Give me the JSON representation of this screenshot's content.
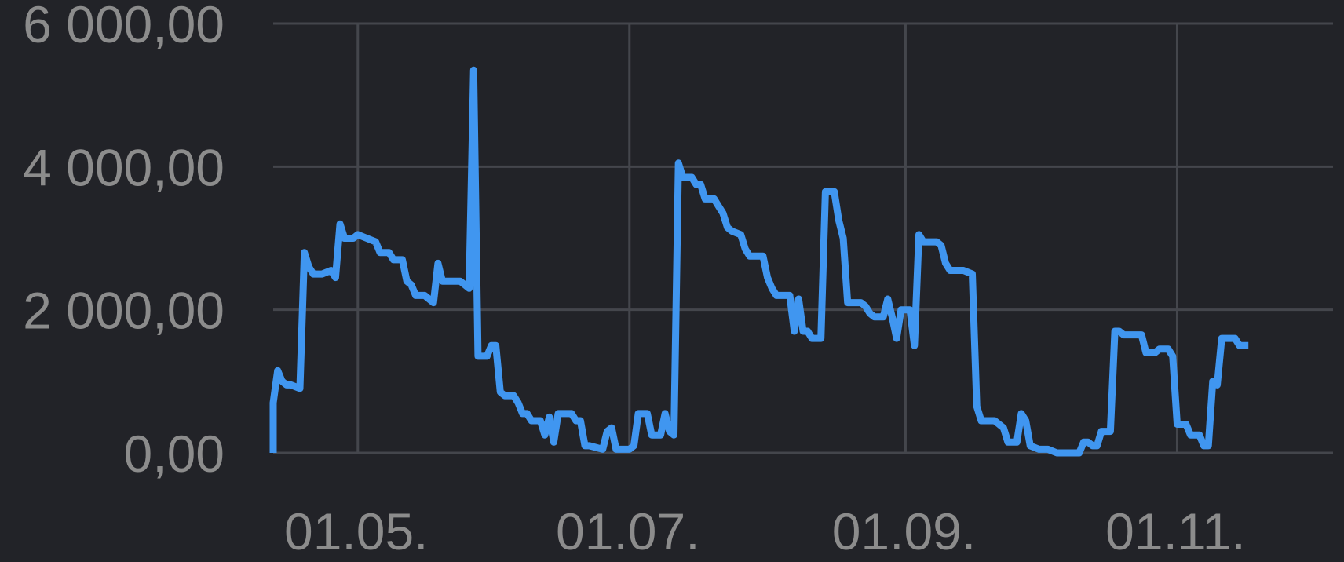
{
  "chart_data": {
    "type": "line",
    "title": "",
    "xlabel": "",
    "ylabel": "",
    "x_range": [
      "2023-04-12",
      "2023-12-06"
    ],
    "ylim": [
      0,
      6000
    ],
    "grid": true,
    "legend": "none",
    "y_ticks": [
      {
        "value": 0,
        "label": "0,00"
      },
      {
        "value": 2000,
        "label": "2 000,00"
      },
      {
        "value": 4000,
        "label": "4 000,00"
      },
      {
        "value": 6000,
        "label": "6 000,00"
      }
    ],
    "x_ticks": [
      {
        "date": "2023-05-01",
        "label": "01.05."
      },
      {
        "date": "2023-07-01",
        "label": "01.07."
      },
      {
        "date": "2023-09-01",
        "label": "01.09."
      },
      {
        "date": "2023-11-01",
        "label": "01.11."
      }
    ],
    "series": [
      {
        "color": "#4096f0",
        "points": [
          [
            "2023-04-12",
            0
          ],
          [
            "2023-04-12",
            700
          ],
          [
            "2023-04-13",
            1150
          ],
          [
            "2023-04-14",
            1000
          ],
          [
            "2023-04-15",
            950
          ],
          [
            "2023-04-16",
            950
          ],
          [
            "2023-04-18",
            900
          ],
          [
            "2023-04-19",
            2800
          ],
          [
            "2023-04-20",
            2600
          ],
          [
            "2023-04-21",
            2500
          ],
          [
            "2023-04-23",
            2500
          ],
          [
            "2023-04-25",
            2550
          ],
          [
            "2023-04-26",
            2450
          ],
          [
            "2023-04-27",
            3200
          ],
          [
            "2023-04-28",
            3000
          ],
          [
            "2023-04-30",
            3000
          ],
          [
            "2023-05-01",
            3050
          ],
          [
            "2023-05-03",
            3000
          ],
          [
            "2023-05-05",
            2950
          ],
          [
            "2023-05-06",
            2800
          ],
          [
            "2023-05-08",
            2800
          ],
          [
            "2023-05-09",
            2700
          ],
          [
            "2023-05-11",
            2700
          ],
          [
            "2023-05-12",
            2400
          ],
          [
            "2023-05-13",
            2350
          ],
          [
            "2023-05-14",
            2200
          ],
          [
            "2023-05-16",
            2200
          ],
          [
            "2023-05-18",
            2100
          ],
          [
            "2023-05-19",
            2650
          ],
          [
            "2023-05-20",
            2400
          ],
          [
            "2023-05-22",
            2400
          ],
          [
            "2023-05-24",
            2400
          ],
          [
            "2023-05-25",
            2350
          ],
          [
            "2023-05-26",
            2300
          ],
          [
            "2023-05-27",
            5350
          ],
          [
            "2023-05-28",
            1350
          ],
          [
            "2023-05-30",
            1350
          ],
          [
            "2023-05-31",
            1500
          ],
          [
            "2023-06-01",
            1500
          ],
          [
            "2023-06-02",
            850
          ],
          [
            "2023-06-03",
            800
          ],
          [
            "2023-06-05",
            800
          ],
          [
            "2023-06-06",
            700
          ],
          [
            "2023-06-07",
            550
          ],
          [
            "2023-06-08",
            550
          ],
          [
            "2023-06-09",
            450
          ],
          [
            "2023-06-11",
            450
          ],
          [
            "2023-06-12",
            250
          ],
          [
            "2023-06-13",
            500
          ],
          [
            "2023-06-14",
            150
          ],
          [
            "2023-06-15",
            550
          ],
          [
            "2023-06-18",
            550
          ],
          [
            "2023-06-19",
            450
          ],
          [
            "2023-06-20",
            450
          ],
          [
            "2023-06-21",
            100
          ],
          [
            "2023-06-22",
            100
          ],
          [
            "2023-06-25",
            50
          ],
          [
            "2023-06-26",
            300
          ],
          [
            "2023-06-27",
            350
          ],
          [
            "2023-06-28",
            50
          ],
          [
            "2023-07-01",
            50
          ],
          [
            "2023-07-02",
            100
          ],
          [
            "2023-07-03",
            550
          ],
          [
            "2023-07-04",
            550
          ],
          [
            "2023-07-05",
            550
          ],
          [
            "2023-07-06",
            250
          ],
          [
            "2023-07-08",
            250
          ],
          [
            "2023-07-09",
            550
          ],
          [
            "2023-07-10",
            300
          ],
          [
            "2023-07-11",
            250
          ],
          [
            "2023-07-12",
            4050
          ],
          [
            "2023-07-13",
            3850
          ],
          [
            "2023-07-15",
            3850
          ],
          [
            "2023-07-16",
            3750
          ],
          [
            "2023-07-17",
            3750
          ],
          [
            "2023-07-18",
            3550
          ],
          [
            "2023-07-20",
            3550
          ],
          [
            "2023-07-21",
            3450
          ],
          [
            "2023-07-22",
            3350
          ],
          [
            "2023-07-23",
            3150
          ],
          [
            "2023-07-24",
            3100
          ],
          [
            "2023-07-26",
            3050
          ],
          [
            "2023-07-27",
            2850
          ],
          [
            "2023-07-28",
            2750
          ],
          [
            "2023-07-31",
            2750
          ],
          [
            "2023-08-01",
            2450
          ],
          [
            "2023-08-02",
            2300
          ],
          [
            "2023-08-03",
            2200
          ],
          [
            "2023-08-06",
            2200
          ],
          [
            "2023-08-07",
            1700
          ],
          [
            "2023-08-08",
            2150
          ],
          [
            "2023-08-09",
            1700
          ],
          [
            "2023-08-10",
            1700
          ],
          [
            "2023-08-11",
            1600
          ],
          [
            "2023-08-13",
            1600
          ],
          [
            "2023-08-14",
            3650
          ],
          [
            "2023-08-16",
            3650
          ],
          [
            "2023-08-17",
            3250
          ],
          [
            "2023-08-18",
            3000
          ],
          [
            "2023-08-19",
            2100
          ],
          [
            "2023-08-22",
            2100
          ],
          [
            "2023-08-23",
            2050
          ],
          [
            "2023-08-24",
            1950
          ],
          [
            "2023-08-25",
            1900
          ],
          [
            "2023-08-27",
            1900
          ],
          [
            "2023-08-28",
            2150
          ],
          [
            "2023-08-29",
            1900
          ],
          [
            "2023-08-30",
            1600
          ],
          [
            "2023-08-31",
            2000
          ],
          [
            "2023-09-02",
            2000
          ],
          [
            "2023-09-03",
            1500
          ],
          [
            "2023-09-04",
            3050
          ],
          [
            "2023-09-05",
            2950
          ],
          [
            "2023-09-08",
            2950
          ],
          [
            "2023-09-09",
            2900
          ],
          [
            "2023-09-10",
            2650
          ],
          [
            "2023-09-11",
            2550
          ],
          [
            "2023-09-14",
            2550
          ],
          [
            "2023-09-16",
            2500
          ],
          [
            "2023-09-17",
            650
          ],
          [
            "2023-09-18",
            450
          ],
          [
            "2023-09-21",
            450
          ],
          [
            "2023-09-23",
            350
          ],
          [
            "2023-09-24",
            150
          ],
          [
            "2023-09-26",
            150
          ],
          [
            "2023-09-27",
            550
          ],
          [
            "2023-09-28",
            450
          ],
          [
            "2023-09-29",
            100
          ],
          [
            "2023-10-01",
            50
          ],
          [
            "2023-10-03",
            50
          ],
          [
            "2023-10-05",
            0
          ],
          [
            "2023-10-10",
            0
          ],
          [
            "2023-10-11",
            150
          ],
          [
            "2023-10-12",
            150
          ],
          [
            "2023-10-13",
            100
          ],
          [
            "2023-10-14",
            100
          ],
          [
            "2023-10-15",
            300
          ],
          [
            "2023-10-17",
            300
          ],
          [
            "2023-10-18",
            1700
          ],
          [
            "2023-10-19",
            1700
          ],
          [
            "2023-10-20",
            1650
          ],
          [
            "2023-10-24",
            1650
          ],
          [
            "2023-10-25",
            1400
          ],
          [
            "2023-10-27",
            1400
          ],
          [
            "2023-10-28",
            1450
          ],
          [
            "2023-10-30",
            1450
          ],
          [
            "2023-10-31",
            1350
          ],
          [
            "2023-11-01",
            400
          ],
          [
            "2023-11-03",
            400
          ],
          [
            "2023-11-04",
            250
          ],
          [
            "2023-11-06",
            250
          ],
          [
            "2023-11-07",
            100
          ],
          [
            "2023-11-08",
            100
          ],
          [
            "2023-11-09",
            1000
          ],
          [
            "2023-11-10",
            950
          ],
          [
            "2023-11-11",
            1600
          ],
          [
            "2023-11-14",
            1600
          ],
          [
            "2023-11-15",
            1500
          ],
          [
            "2023-11-17",
            1500
          ]
        ]
      }
    ]
  }
}
